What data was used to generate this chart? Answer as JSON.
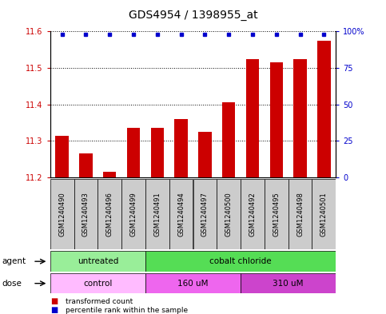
{
  "title": "GDS4954 / 1398955_at",
  "samples": [
    "GSM1240490",
    "GSM1240493",
    "GSM1240496",
    "GSM1240499",
    "GSM1240491",
    "GSM1240494",
    "GSM1240497",
    "GSM1240500",
    "GSM1240492",
    "GSM1240495",
    "GSM1240498",
    "GSM1240501"
  ],
  "bar_values": [
    11.315,
    11.265,
    11.215,
    11.335,
    11.335,
    11.36,
    11.325,
    11.405,
    11.525,
    11.515,
    11.525,
    11.575
  ],
  "percentile_values": [
    98,
    98,
    98,
    98,
    98,
    98,
    98,
    98,
    98,
    98,
    98,
    98
  ],
  "bar_color": "#cc0000",
  "dot_color": "#0000cc",
  "ylim_left": [
    11.2,
    11.6
  ],
  "ylim_right": [
    0,
    100
  ],
  "yticks_left": [
    11.2,
    11.3,
    11.4,
    11.5,
    11.6
  ],
  "yticks_right": [
    0,
    25,
    50,
    75,
    100
  ],
  "plot_bg_color": "#ffffff",
  "agent_groups": [
    {
      "label": "untreated",
      "color": "#99ee99",
      "start": 0,
      "end": 4
    },
    {
      "label": "cobalt chloride",
      "color": "#55dd55",
      "start": 4,
      "end": 12
    }
  ],
  "dose_groups": [
    {
      "label": "control",
      "color": "#ffbbff",
      "start": 0,
      "end": 4
    },
    {
      "label": "160 uM",
      "color": "#ee66ee",
      "start": 4,
      "end": 8
    },
    {
      "label": "310 uM",
      "color": "#cc44cc",
      "start": 8,
      "end": 12
    }
  ],
  "legend_items": [
    {
      "label": "transformed count",
      "color": "#cc0000"
    },
    {
      "label": "percentile rank within the sample",
      "color": "#0000cc"
    }
  ],
  "title_fontsize": 10,
  "tick_fontsize": 7,
  "sample_fontsize": 6,
  "bar_width": 0.55
}
